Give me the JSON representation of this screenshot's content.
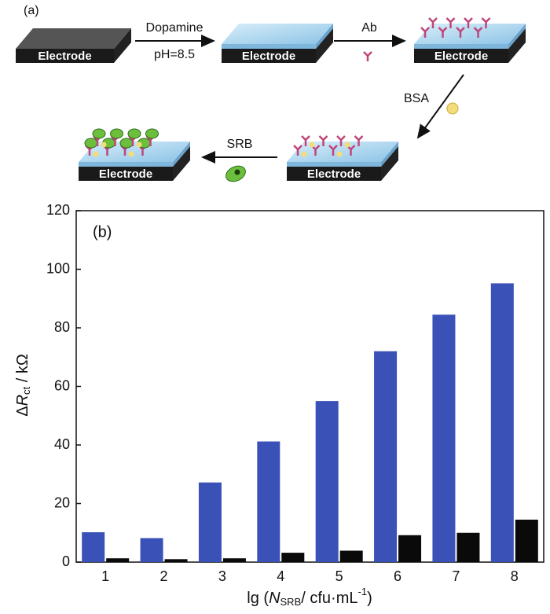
{
  "schematic": {
    "panel_label": "(a)",
    "electrodes": [
      "Electrode",
      "Electrode",
      "Electrode",
      "Electrode",
      "Electrode"
    ],
    "steps": [
      {
        "label": "Dopamine",
        "sublabel": "pH=8.5"
      },
      {
        "label": "Ab"
      },
      {
        "label": "BSA"
      },
      {
        "label": "SRB"
      }
    ]
  },
  "chart_data": {
    "type": "bar",
    "panel_label": "(b)",
    "x_label": [
      "lg (",
      "N",
      "SRB",
      "/ cfu·mL",
      "-1",
      ")"
    ],
    "y_label": [
      "Δ",
      "R",
      "ct",
      " / kΩ"
    ],
    "categories": [
      1,
      2,
      3,
      4,
      5,
      6,
      7,
      8
    ],
    "series": [
      {
        "color": "#3a52b8",
        "values": [
          10.2,
          8.2,
          27.2,
          41.2,
          55,
          72,
          84.5,
          95.2
        ]
      },
      {
        "color": "#0a0a0a",
        "values": [
          1.3,
          1.0,
          1.3,
          3.2,
          3.9,
          9.2,
          10,
          14.5
        ]
      }
    ],
    "ylim": [
      0,
      120
    ],
    "yticks": [
      0,
      20,
      40,
      60,
      80,
      100,
      120
    ]
  }
}
